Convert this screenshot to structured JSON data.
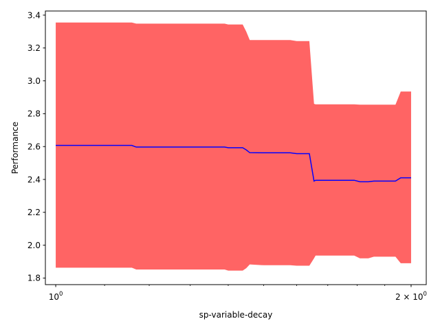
{
  "chart_data": {
    "type": "line",
    "title": "",
    "xlabel": "sp-variable-decay",
    "ylabel": "Performance",
    "xscale": "log",
    "xlim": [
      0.98,
      2.06
    ],
    "ylim": [
      1.76,
      3.425
    ],
    "grid": false,
    "legend": "none",
    "x_ticks": [
      {
        "value": 1,
        "label": "10",
        "exp": "0"
      },
      {
        "value": 2,
        "label": "2 × 10",
        "exp": "0"
      }
    ],
    "y_ticks": [
      {
        "value": 1.8,
        "label": "1.8"
      },
      {
        "value": 2.0,
        "label": "2.0"
      },
      {
        "value": 2.2,
        "label": "2.2"
      },
      {
        "value": 2.4,
        "label": "2.4"
      },
      {
        "value": 2.6,
        "label": "2.6"
      },
      {
        "value": 2.8,
        "label": "2.8"
      },
      {
        "value": 3.0,
        "label": "3.0"
      },
      {
        "value": 3.2,
        "label": "3.2"
      },
      {
        "value": 3.4,
        "label": "3.4"
      }
    ],
    "series": [
      {
        "color": "#0000ff",
        "fill_color": "#ff6464",
        "x": [
          1.0,
          1.16,
          1.17,
          1.39,
          1.4,
          1.44,
          1.45,
          1.46,
          1.5,
          1.58,
          1.6,
          1.64,
          1.655,
          1.66,
          1.69,
          1.79,
          1.81,
          1.84,
          1.86,
          1.94,
          1.96,
          2.0
        ],
        "y": [
          2.607,
          2.607,
          2.597,
          2.597,
          2.593,
          2.593,
          2.58,
          2.563,
          2.562,
          2.562,
          2.557,
          2.557,
          2.39,
          2.395,
          2.395,
          2.395,
          2.386,
          2.386,
          2.39,
          2.39,
          2.41,
          2.41
        ],
        "upper": [
          3.355,
          3.355,
          3.348,
          3.348,
          3.343,
          3.343,
          3.3,
          3.248,
          3.248,
          3.248,
          3.242,
          3.242,
          2.86,
          2.857,
          2.857,
          2.857,
          2.855,
          2.855,
          2.855,
          2.855,
          2.935,
          2.935
        ],
        "lower": [
          1.863,
          1.863,
          1.852,
          1.852,
          1.845,
          1.845,
          1.86,
          1.883,
          1.878,
          1.878,
          1.875,
          1.875,
          1.92,
          1.937,
          1.937,
          1.937,
          1.92,
          1.92,
          1.93,
          1.93,
          1.89,
          1.89
        ]
      }
    ]
  }
}
